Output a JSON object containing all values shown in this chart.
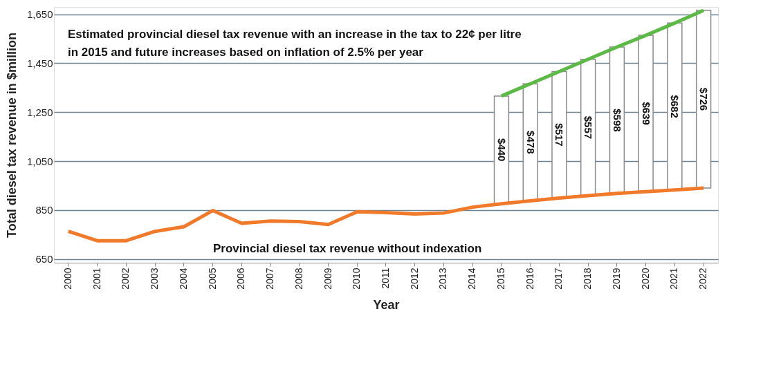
{
  "chart_data": {
    "type": "line",
    "xlabel": "Year",
    "ylabel": "Total diesel tax revenue in $million",
    "categories": [
      "2000",
      "2001",
      "2002",
      "2003",
      "2004",
      "2005",
      "2006",
      "2007",
      "2008",
      "2009",
      "2010",
      "2011",
      "2012",
      "2013",
      "2014",
      "2015",
      "2016",
      "2017",
      "2018",
      "2019",
      "2020",
      "2021",
      "2022"
    ],
    "series": [
      {
        "type": "bar",
        "color": "#ffffff",
        "base": [
          null,
          null,
          null,
          null,
          null,
          null,
          null,
          null,
          null,
          null,
          null,
          null,
          null,
          null,
          null,
          876,
          888,
          899,
          909,
          918,
          925,
          932,
          940
        ],
        "values": [
          null,
          null,
          null,
          null,
          null,
          null,
          null,
          null,
          null,
          null,
          null,
          null,
          null,
          null,
          null,
          440,
          478,
          517,
          557,
          598,
          639,
          682,
          726
        ],
        "value_labels": [
          null,
          null,
          null,
          null,
          null,
          null,
          null,
          null,
          null,
          null,
          null,
          null,
          null,
          null,
          null,
          "$440",
          "$478",
          "$517",
          "$557",
          "$598",
          "$639",
          "$682",
          "$726"
        ]
      },
      {
        "color": "#f07a2a",
        "values": [
          763,
          725,
          725,
          763,
          782,
          848,
          796,
          805,
          803,
          791,
          843,
          840,
          834,
          838,
          862,
          876,
          888,
          899,
          909,
          918,
          925,
          932,
          940
        ]
      },
      {
        "color": "#5cb946",
        "values": [
          null,
          null,
          null,
          null,
          null,
          null,
          null,
          null,
          null,
          null,
          null,
          null,
          null,
          null,
          null,
          1316,
          1366,
          1416,
          1466,
          1516,
          1564,
          1614,
          1666
        ]
      }
    ],
    "ylim": [
      635,
      1680
    ],
    "yticks": [
      {
        "value": 650,
        "label": "650"
      },
      {
        "value": 850,
        "label": "850"
      },
      {
        "value": 1050,
        "label": "1,050"
      },
      {
        "value": 1250,
        "label": "1,250"
      },
      {
        "value": 1450,
        "label": "1,450"
      },
      {
        "value": 1650,
        "label": "1,650"
      }
    ],
    "grid": "y",
    "legend": false,
    "line_style": "solid",
    "marker": "none",
    "annotations": [
      "Estimated provincial diesel tax revenue with an increase in the tax to 22¢ per litre in 2015 and future increases based on inflation of 2.5% per year",
      "Provincial diesel tax revenue without indexation"
    ]
  }
}
